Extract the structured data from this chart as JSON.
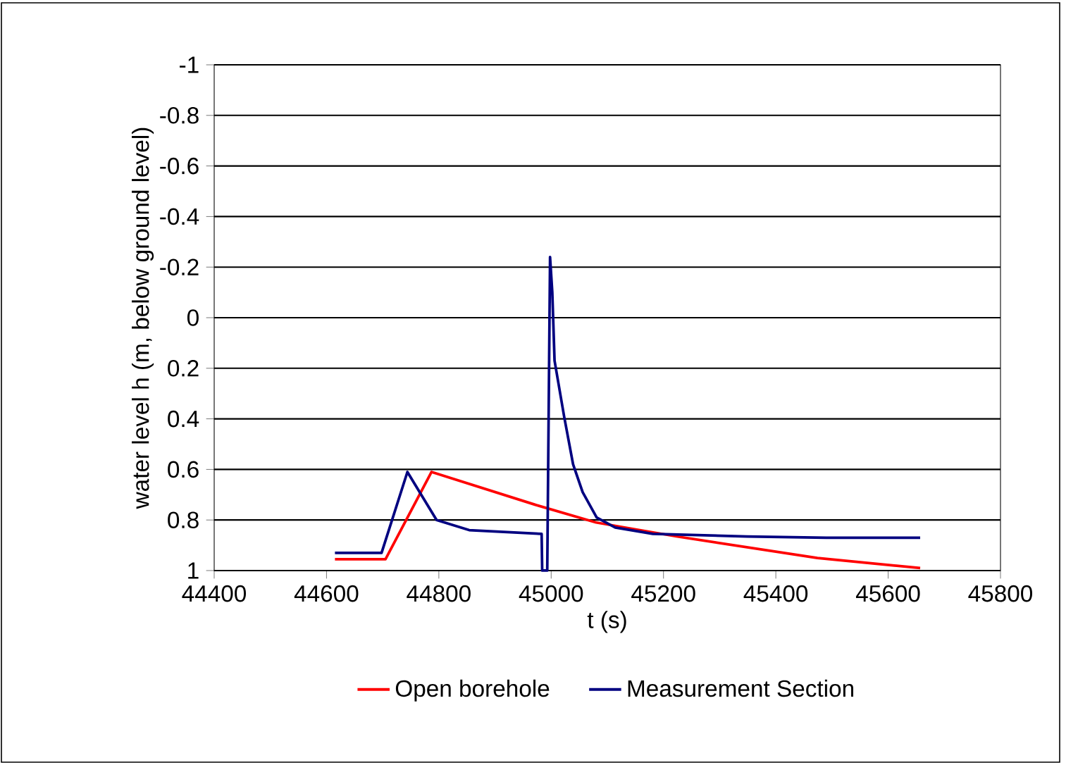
{
  "chart_data": {
    "type": "line",
    "xlabel": "t (s)",
    "ylabel": "water level h (m, below ground level)",
    "xlim": [
      44400,
      45800
    ],
    "xticks": [
      44400,
      44600,
      44800,
      45000,
      45200,
      45400,
      45600,
      45800
    ],
    "ylim": [
      1,
      -1
    ],
    "yticks": [
      -1,
      -0.8,
      -0.6,
      -0.4,
      -0.2,
      0,
      0.2,
      0.4,
      0.6,
      0.8,
      1
    ],
    "grid": "y",
    "legend": "bottom",
    "marker": "none",
    "line_style": "solid",
    "series": [
      {
        "name": "Open borehole",
        "color": "#ff0000",
        "x": [
          44615,
          44705,
          44787,
          44972,
          45080,
          45223,
          45474,
          45657
        ],
        "values": [
          0.955,
          0.955,
          0.61,
          0.74,
          0.81,
          0.865,
          0.95,
          0.99
        ]
      },
      {
        "name": "Measurement Section",
        "color": "#000080",
        "x": [
          44615,
          44698,
          44744,
          44796,
          44854,
          44983,
          44984,
          44993,
          44998,
          45002,
          45006,
          45023,
          45039,
          45056,
          45081,
          45114,
          45181,
          45349,
          45490,
          45657
        ],
        "values": [
          0.93,
          0.93,
          0.61,
          0.8,
          0.84,
          0.855,
          1.0,
          1.0,
          -0.24,
          -0.1,
          0.17,
          0.39,
          0.58,
          0.69,
          0.79,
          0.83,
          0.855,
          0.865,
          0.87,
          0.87
        ]
      }
    ]
  }
}
